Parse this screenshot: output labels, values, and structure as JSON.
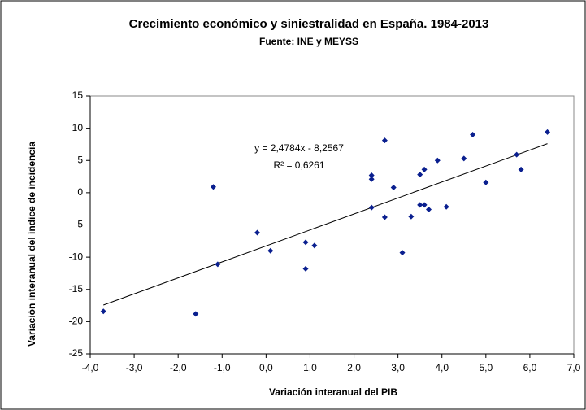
{
  "chart_data": {
    "type": "scatter",
    "title": "Crecimiento económico y siniestralidad en España. 1984-2013",
    "subtitle": "Fuente: INE y MEYSS",
    "x_label": "Variación interanual del PIB",
    "y_label": "Variación interanual del índice de incidencia",
    "color": "#0a1f8f",
    "x": [
      -3.7,
      -1.6,
      -1.2,
      -1.1,
      -0.2,
      0.1,
      0.9,
      0.9,
      1.1,
      2.4,
      2.4,
      2.4,
      2.7,
      2.7,
      2.9,
      3.1,
      3.3,
      3.5,
      3.5,
      3.6,
      3.6,
      3.7,
      3.9,
      4.1,
      4.5,
      4.7,
      5.0,
      5.7,
      5.8,
      6.4
    ],
    "values": [
      -18.4,
      -18.8,
      0.9,
      -11.1,
      -6.2,
      -9.0,
      -7.7,
      -11.8,
      -8.2,
      2.7,
      2.1,
      -2.3,
      8.1,
      -3.8,
      0.8,
      -9.3,
      -3.7,
      2.8,
      -1.9,
      3.6,
      -1.9,
      -2.6,
      5.0,
      -2.2,
      5.3,
      9.0,
      1.6,
      5.9,
      3.6,
      9.4
    ],
    "trendline": {
      "equation": "y = 2,4784x - 8,2567",
      "r2": "R² = 0,6261",
      "slope": 2.4784,
      "intercept": -8.2567
    },
    "xlim": [
      -4,
      7
    ],
    "xticks": [
      {
        "value": -4,
        "label": "-4,0"
      },
      {
        "value": -3,
        "label": "-3,0"
      },
      {
        "value": -2,
        "label": "-2,0"
      },
      {
        "value": -1,
        "label": "-1,0"
      },
      {
        "value": 0,
        "label": "0,0"
      },
      {
        "value": 1,
        "label": "1,0"
      },
      {
        "value": 2,
        "label": "2,0"
      },
      {
        "value": 3,
        "label": "3,0"
      },
      {
        "value": 4,
        "label": "4,0"
      },
      {
        "value": 5,
        "label": "5,0"
      },
      {
        "value": 6,
        "label": "6,0"
      },
      {
        "value": 7,
        "label": "7,0"
      }
    ],
    "ylim": [
      -25,
      15
    ],
    "yticks": [
      -25,
      -20,
      -15,
      -10,
      -5,
      0,
      5,
      10,
      15
    ]
  }
}
